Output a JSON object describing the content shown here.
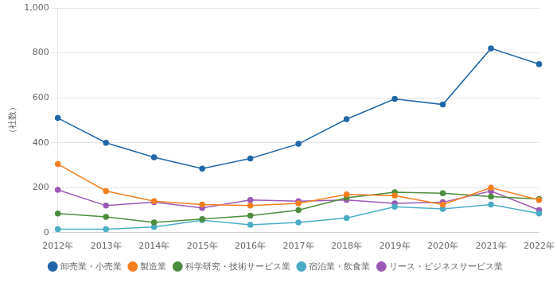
{
  "chart_data": {
    "type": "line",
    "ylabel": "（社数）",
    "categories": [
      "2012年",
      "2013年",
      "2014年",
      "2015年",
      "2016年",
      "2017年",
      "2018年",
      "2019年",
      "2020年",
      "2021年",
      "2022年"
    ],
    "series": [
      {
        "name": "卸売業・小売業",
        "color": "#2166a8",
        "marker": "circle",
        "values": [
          510,
          400,
          335,
          285,
          330,
          395,
          505,
          595,
          570,
          820,
          750
        ]
      },
      {
        "name": "製造業",
        "color": "#f47f20",
        "marker": "circle",
        "values": [
          305,
          185,
          140,
          125,
          120,
          130,
          170,
          165,
          125,
          200,
          145
        ]
      },
      {
        "name": "科学研究・技術サービス業",
        "color": "#4d8c3f",
        "marker": "circle",
        "values": [
          85,
          70,
          45,
          60,
          75,
          100,
          155,
          180,
          175,
          160,
          150
        ]
      },
      {
        "name": "宿泊業・飲食業",
        "color": "#4bacc6",
        "marker": "circle",
        "values": [
          15,
          15,
          25,
          55,
          35,
          45,
          65,
          115,
          105,
          125,
          85
        ]
      },
      {
        "name": "リース・ビジネスサービス業",
        "color": "#9b59b6",
        "marker": "circle",
        "values": [
          190,
          120,
          135,
          110,
          145,
          140,
          145,
          130,
          135,
          185,
          100
        ]
      }
    ],
    "ylim": [
      0,
      1000
    ],
    "yticks": [
      0,
      200,
      400,
      600,
      800,
      {
        "value": 1000,
        "label": "1,000"
      }
    ],
    "grid": true,
    "legend": "bottom"
  }
}
